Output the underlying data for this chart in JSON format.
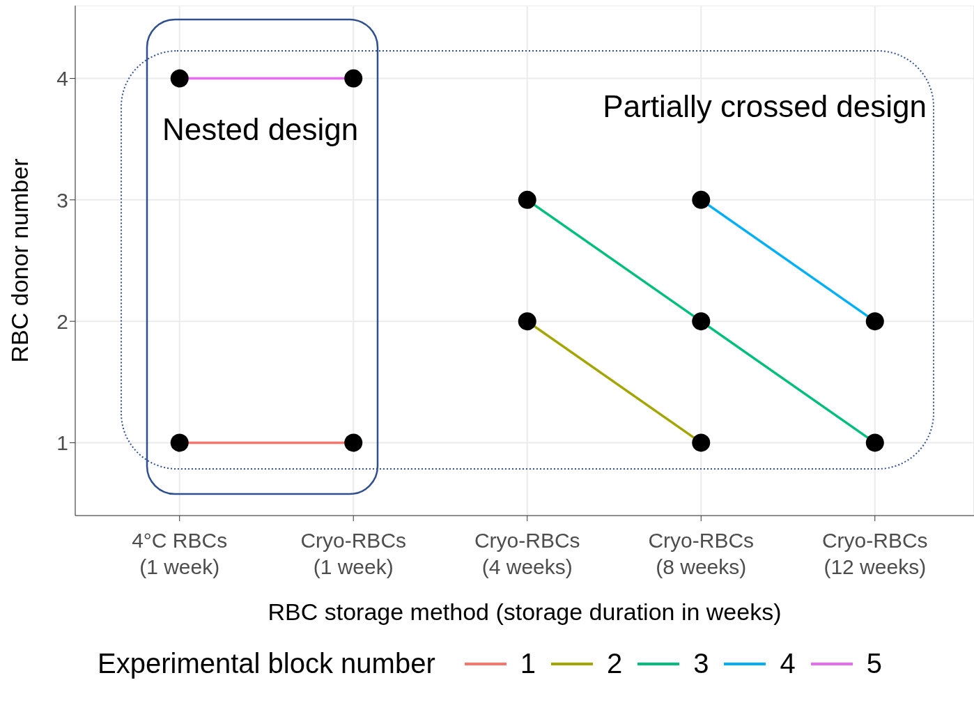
{
  "chart_data": {
    "type": "line",
    "xlabel": "RBC storage method (storage duration in weeks)",
    "ylabel": "RBC donor number",
    "legend_title": "Experimental block number",
    "categories": [
      "4°C RBCs\n(1 week)",
      "Cryo-RBCs\n(1 week)",
      "Cryo-RBCs\n(4 weeks)",
      "Cryo-RBCs\n(8 weeks)",
      "Cryo-RBCs\n(12 weeks)"
    ],
    "series": [
      {
        "name": "1",
        "color": "#f8766d",
        "values": [
          1,
          1,
          null,
          null,
          null
        ]
      },
      {
        "name": "2",
        "color": "#a3a500",
        "values": [
          null,
          null,
          2,
          1,
          null
        ]
      },
      {
        "name": "3",
        "color": "#00bf7d",
        "values": [
          null,
          null,
          3,
          2,
          1
        ]
      },
      {
        "name": "4",
        "color": "#00b0f6",
        "values": [
          null,
          null,
          null,
          3,
          2
        ]
      },
      {
        "name": "5",
        "color": "#e76bf3",
        "values": [
          4,
          4,
          null,
          null,
          null
        ]
      }
    ],
    "ylim": [
      0.4,
      4.6
    ],
    "yticks": [
      1,
      2,
      3,
      4
    ],
    "grid": true,
    "legend": "bottom",
    "marker": "circle",
    "line_style": "solid",
    "annotations": [
      "Nested design",
      "Partially crossed design"
    ]
  }
}
